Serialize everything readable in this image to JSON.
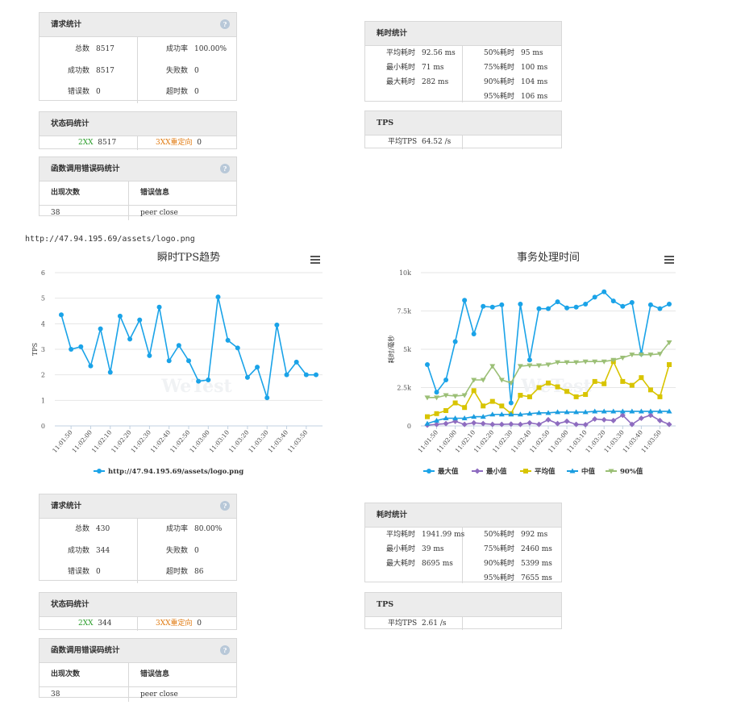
{
  "top": {
    "req": {
      "title": "请求统计",
      "total_label": "总数",
      "total": "8517",
      "success_label": "成功数",
      "success": "8517",
      "error_label": "错误数",
      "error": "0",
      "rate_label": "成功率",
      "rate": "100.00%",
      "fail_label": "失败数",
      "fail": "0",
      "timeout_label": "超时数",
      "timeout": "0"
    },
    "status": {
      "title": "状态码统计",
      "code2": "2XX",
      "code2_val": "8517",
      "code3": "3XX重定向",
      "code3_val": "0"
    },
    "err": {
      "title": "函数调用错误码统计",
      "col1": "出现次数",
      "col2": "错误信息",
      "count": "38",
      "msg": "peer close"
    },
    "time": {
      "title": "耗时统计",
      "avg_label": "平均耗时",
      "avg": "92.56 ms",
      "min_label": "最小耗时",
      "min": "71 ms",
      "max_label": "最大耗时",
      "max": "282 ms",
      "p50_label": "50%耗时",
      "p50": "95 ms",
      "p75_label": "75%耗时",
      "p75": "100 ms",
      "p90_label": "90%耗时",
      "p90": "104 ms",
      "p95_label": "95%耗时",
      "p95": "106 ms"
    },
    "tps": {
      "title": "TPS",
      "avg_label": "平均TPS",
      "avg": "64.52 /s"
    }
  },
  "url": "http://47.94.195.69/assets/logo.png",
  "bottom": {
    "req": {
      "title": "请求统计",
      "total_label": "总数",
      "total": "430",
      "success_label": "成功数",
      "success": "344",
      "error_label": "错误数",
      "error": "0",
      "rate_label": "成功率",
      "rate": "80.00%",
      "fail_label": "失败数",
      "fail": "0",
      "timeout_label": "超时数",
      "timeout": "86"
    },
    "status": {
      "title": "状态码统计",
      "code2": "2XX",
      "code2_val": "344",
      "code3": "3XX重定向",
      "code3_val": "0"
    },
    "err": {
      "title": "函数调用错误码统计",
      "col1": "出现次数",
      "col2": "错误信息",
      "count": "38",
      "msg": "peer close"
    },
    "time": {
      "title": "耗时统计",
      "avg_label": "平均耗时",
      "avg": "1941.99 ms",
      "min_label": "最小耗时",
      "min": "39 ms",
      "max_label": "最大耗时",
      "max": "8695 ms",
      "p50_label": "50%耗时",
      "p50": "992 ms",
      "p75_label": "75%耗时",
      "p75": "2460 ms",
      "p90_label": "90%耗时",
      "p90": "5399 ms",
      "p95_label": "95%耗时",
      "p95": "7655 ms"
    },
    "tps": {
      "title": "TPS",
      "avg_label": "平均TPS",
      "avg": "2.61 /s"
    }
  },
  "colors": {
    "blue": "#1aa3e8",
    "purple": "#8e6cc0",
    "yellow": "#d8c400",
    "cyan": "#1a9de0",
    "green": "#9bbf76"
  },
  "icons": {
    "help": "question-icon",
    "menu": "hamburger-menu-icon"
  },
  "chart_data": [
    {
      "type": "line",
      "title": "瞬时TPS趋势",
      "xlabel": "",
      "ylabel": "TPS",
      "ylim": [
        0,
        6
      ],
      "yticks": [
        "0",
        "1",
        "2",
        "3",
        "4",
        "5",
        "6"
      ],
      "xticks": [
        "11:01:50",
        "11:02:00",
        "11:02:10",
        "11:02:20",
        "11:02:30",
        "11:02:40",
        "11:02:50",
        "11:03:00",
        "11:03:10",
        "11:03:20",
        "11:03:30",
        "11:03:40",
        "11:03:50"
      ],
      "watermark": "WeTest",
      "legend": "bottom",
      "series": [
        {
          "name": "http://47.94.195.69/assets/logo.png",
          "values": [
            4.35,
            3.0,
            3.1,
            2.35,
            3.8,
            2.1,
            4.3,
            3.4,
            4.15,
            2.75,
            4.65,
            2.55,
            3.15,
            2.55,
            1.75,
            1.8,
            5.05,
            3.35,
            3.05,
            1.9,
            2.3,
            1.1,
            3.95,
            2.0,
            2.5,
            2.0,
            2.0
          ]
        }
      ]
    },
    {
      "type": "line",
      "title": "事务处理时间",
      "xlabel": "",
      "ylabel": "耗时/毫秒",
      "ylim": [
        0,
        10000
      ],
      "yticks": [
        "0",
        "2.5k",
        "5k",
        "7.5k",
        "10k"
      ],
      "xticks": [
        "11:01:50",
        "11:02:00",
        "11:02:10",
        "11:02:20",
        "11:02:30",
        "11:02:40",
        "11:02:50",
        "11:03:00",
        "11:03:10",
        "11:03:20",
        "11:03:30",
        "11:03:40",
        "11:03:50"
      ],
      "watermark": "WeTest",
      "legend": "bottom",
      "series": [
        {
          "name": "最大值",
          "values": [
            4000,
            2200,
            3000,
            5500,
            8200,
            6000,
            7800,
            7750,
            7900,
            1500,
            7950,
            4300,
            7650,
            7650,
            8100,
            7700,
            7750,
            7950,
            8400,
            8750,
            8150,
            7800,
            8050,
            4700,
            7900,
            7650,
            7950
          ]
        },
        {
          "name": "最小值",
          "values": [
            50,
            100,
            150,
            300,
            100,
            200,
            150,
            100,
            100,
            120,
            100,
            200,
            100,
            400,
            150,
            300,
            100,
            80,
            450,
            400,
            350,
            700,
            100,
            500,
            700,
            350,
            100
          ]
        },
        {
          "name": "平均值",
          "values": [
            600,
            800,
            1000,
            1500,
            1200,
            2300,
            1300,
            1600,
            1300,
            800,
            2000,
            1900,
            2500,
            2800,
            2550,
            2250,
            1900,
            2050,
            2900,
            2750,
            4200,
            2900,
            2650,
            3150,
            2350,
            1900,
            4000
          ]
        },
        {
          "name": "中值",
          "values": [
            150,
            350,
            500,
            500,
            500,
            600,
            600,
            750,
            750,
            750,
            750,
            800,
            850,
            850,
            900,
            900,
            900,
            900,
            950,
            950,
            950,
            950,
            950,
            950,
            950,
            950,
            950
          ]
        },
        {
          "name": "90%值",
          "values": [
            1850,
            1850,
            2000,
            1950,
            2000,
            3000,
            3000,
            3900,
            3000,
            2800,
            3900,
            3950,
            3950,
            4000,
            4150,
            4150,
            4150,
            4200,
            4200,
            4200,
            4300,
            4450,
            4650,
            4650,
            4650,
            4700,
            5450
          ]
        }
      ]
    }
  ]
}
